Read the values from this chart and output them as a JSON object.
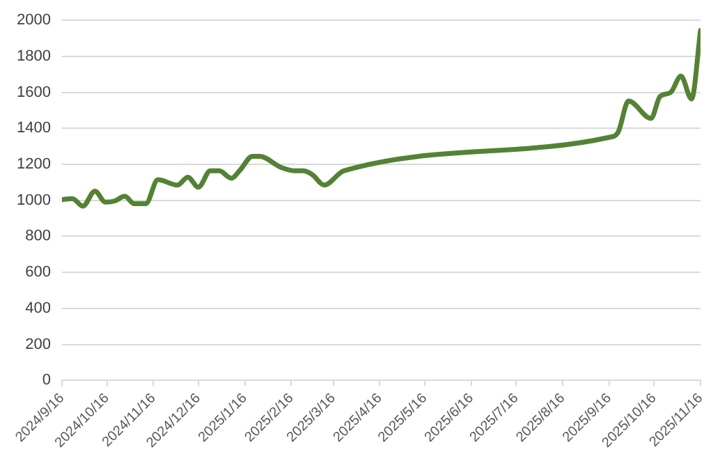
{
  "chart_data": {
    "type": "line",
    "x": [
      "2024-09-16",
      "2024-09-23",
      "2024-09-30",
      "2024-10-08",
      "2024-10-15",
      "2024-10-21",
      "2024-10-28",
      "2024-11-03",
      "2024-11-11",
      "2024-11-19",
      "2024-12-02",
      "2024-12-09",
      "2024-12-16",
      "2024-12-24",
      "2024-12-30",
      "2025-01-07",
      "2025-01-13",
      "2025-01-21",
      "2025-01-26",
      "2025-02-09",
      "2025-02-19",
      "2025-02-24",
      "2025-03-02",
      "2025-03-10",
      "2025-03-23",
      "2025-06-16",
      "2025-09-16",
      "2025-09-22",
      "2025-09-29",
      "2025-10-14",
      "2025-10-20",
      "2025-10-27",
      "2025-11-03",
      "2025-11-10",
      "2025-11-16"
    ],
    "series": [
      {
        "color": "#548235",
        "values": [
          1004,
          1010,
          968,
          1051,
          990,
          996,
          1023,
          982,
          982,
          1115,
          1085,
          1129,
          1073,
          1164,
          1164,
          1123,
          1170,
          1245,
          1245,
          1184,
          1164,
          1164,
          1143,
          1085,
          1164,
          null,
          1350,
          1378,
          1552,
          1455,
          1577,
          1599,
          1690,
          1563,
          1944
        ]
      }
    ],
    "xlim": [
      "2024-09-16",
      "2025-11-16"
    ],
    "xticks": [
      {
        "value": "2024-09-16",
        "label": "2024/9/16"
      },
      {
        "value": "2024-10-16",
        "label": "2024/10/16"
      },
      {
        "value": "2024-11-16",
        "label": "2024/11/16"
      },
      {
        "value": "2024-12-16",
        "label": "2024/12/16"
      },
      {
        "value": "2025-01-16",
        "label": "2025/1/16"
      },
      {
        "value": "2025-02-16",
        "label": "2025/2/16"
      },
      {
        "value": "2025-03-16",
        "label": "2025/3/16"
      },
      {
        "value": "2025-04-16",
        "label": "2025/4/16"
      },
      {
        "value": "2025-05-16",
        "label": "2025/5/16"
      },
      {
        "value": "2025-06-16",
        "label": "2025/6/16"
      },
      {
        "value": "2025-07-16",
        "label": "2025/7/16"
      },
      {
        "value": "2025-08-16",
        "label": "2025/8/16"
      },
      {
        "value": "2025-09-16",
        "label": "2025/9/16"
      },
      {
        "value": "2025-10-16",
        "label": "2025/10/16"
      },
      {
        "value": "2025-11-16",
        "label": "2025/11/16"
      }
    ],
    "ylim": [
      0,
      2000
    ],
    "yticks": [
      0,
      200,
      400,
      600,
      800,
      1000,
      1200,
      1400,
      1600,
      1800,
      2000
    ],
    "grid": "y",
    "marker": "none",
    "legend": false
  }
}
